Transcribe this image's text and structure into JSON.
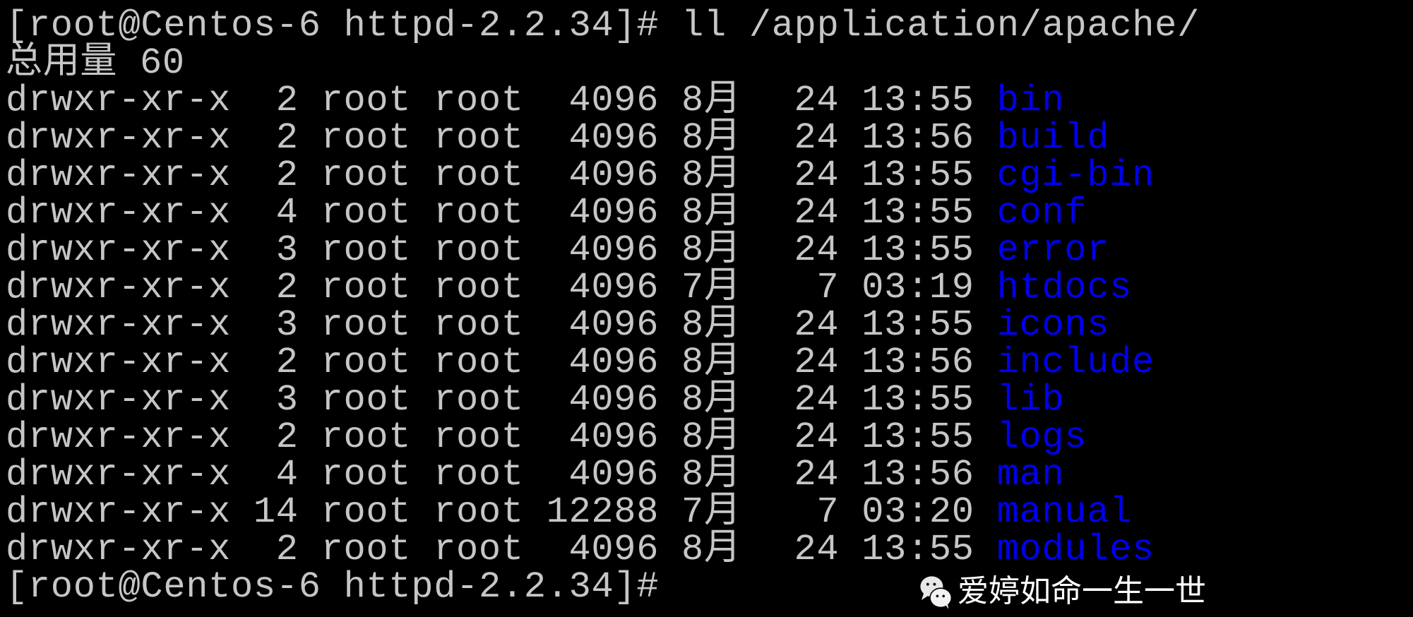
{
  "terminal": {
    "colors": {
      "background": "#000000",
      "text": "#c6c6c6",
      "directory": "#0000f0"
    },
    "prompt_command": "[root@Centos-6 httpd-2.2.34]# ll /application/apache/",
    "total_line": "总用量 60",
    "entries": [
      {
        "perms": "drwxr-xr-x",
        "links": "2",
        "owner": "root",
        "group": "root",
        "size": "4096",
        "month": "8月",
        "day": "24",
        "time": "13:55",
        "name": "bin"
      },
      {
        "perms": "drwxr-xr-x",
        "links": "2",
        "owner": "root",
        "group": "root",
        "size": "4096",
        "month": "8月",
        "day": "24",
        "time": "13:56",
        "name": "build"
      },
      {
        "perms": "drwxr-xr-x",
        "links": "2",
        "owner": "root",
        "group": "root",
        "size": "4096",
        "month": "8月",
        "day": "24",
        "time": "13:55",
        "name": "cgi-bin"
      },
      {
        "perms": "drwxr-xr-x",
        "links": "4",
        "owner": "root",
        "group": "root",
        "size": "4096",
        "month": "8月",
        "day": "24",
        "time": "13:55",
        "name": "conf"
      },
      {
        "perms": "drwxr-xr-x",
        "links": "3",
        "owner": "root",
        "group": "root",
        "size": "4096",
        "month": "8月",
        "day": "24",
        "time": "13:55",
        "name": "error"
      },
      {
        "perms": "drwxr-xr-x",
        "links": "2",
        "owner": "root",
        "group": "root",
        "size": "4096",
        "month": "7月",
        "day": "7",
        "time": "03:19",
        "name": "htdocs"
      },
      {
        "perms": "drwxr-xr-x",
        "links": "3",
        "owner": "root",
        "group": "root",
        "size": "4096",
        "month": "8月",
        "day": "24",
        "time": "13:55",
        "name": "icons"
      },
      {
        "perms": "drwxr-xr-x",
        "links": "2",
        "owner": "root",
        "group": "root",
        "size": "4096",
        "month": "8月",
        "day": "24",
        "time": "13:56",
        "name": "include"
      },
      {
        "perms": "drwxr-xr-x",
        "links": "3",
        "owner": "root",
        "group": "root",
        "size": "4096",
        "month": "8月",
        "day": "24",
        "time": "13:55",
        "name": "lib"
      },
      {
        "perms": "drwxr-xr-x",
        "links": "2",
        "owner": "root",
        "group": "root",
        "size": "4096",
        "month": "8月",
        "day": "24",
        "time": "13:55",
        "name": "logs"
      },
      {
        "perms": "drwxr-xr-x",
        "links": "4",
        "owner": "root",
        "group": "root",
        "size": "4096",
        "month": "8月",
        "day": "24",
        "time": "13:56",
        "name": "man"
      },
      {
        "perms": "drwxr-xr-x",
        "links": "14",
        "owner": "root",
        "group": "root",
        "size": "12288",
        "month": "7月",
        "day": "7",
        "time": "03:20",
        "name": "manual"
      },
      {
        "perms": "drwxr-xr-x",
        "links": "2",
        "owner": "root",
        "group": "root",
        "size": "4096",
        "month": "8月",
        "day": "24",
        "time": "13:55",
        "name": "modules"
      }
    ],
    "final_prompt": "[root@Centos-6 httpd-2.2.34]#"
  },
  "watermark": {
    "icon": "wechat-icon",
    "text": "爱婷如命一生一世"
  }
}
